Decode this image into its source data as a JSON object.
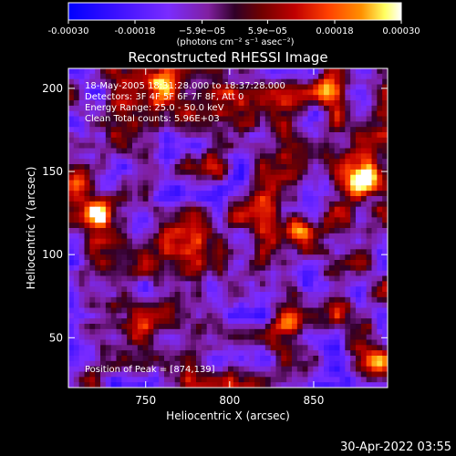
{
  "chart_data": {
    "type": "heatmap",
    "title": "Reconstructed RHESSI Image",
    "xlabel": "Heliocentric X (arcsec)",
    "ylabel": "Heliocentric Y (arcsec)",
    "xlim": [
      704,
      894
    ],
    "ylim": [
      20,
      212
    ],
    "x_ticks": [
      750,
      800,
      850
    ],
    "y_ticks": [
      50,
      100,
      150,
      200
    ],
    "colorbar": {
      "ticks": [
        "-0.00030",
        "-0.00018",
        "−5.9e−05",
        "5.9e−05",
        "0.00018",
        "0.00030"
      ],
      "tick_values": [
        -0.0003,
        -0.00018,
        -5.9e-05,
        5.9e-05,
        0.00018,
        0.0003
      ],
      "range": [
        -0.0003,
        0.0003
      ],
      "units": "(photons cm⁻² s⁻¹ asec⁻²)",
      "colors": [
        "#0000ff",
        "#7a2cff",
        "#8020a0",
        "#300028",
        "#a00000",
        "#ff3000",
        "#ff9000",
        "#ffff80",
        "#ffffff"
      ]
    },
    "annotations": [
      "18-May-2005 18:31:28.000 to 18:37:28.000",
      "Detectors: 3F 4F 5F 6F 7F 8F, Att 0",
      "Energy Range: 25.0 - 50.0 keV",
      "Clean     Total counts: 5.96E+03"
    ],
    "peak_label": "Position of Peak = [874,139]",
    "peak_position": [
      874,
      139
    ],
    "bright_sources": [
      {
        "x": 875,
        "y": 140,
        "value": 0.0003
      },
      {
        "x": 835,
        "y": 62,
        "value": 0.00027
      },
      {
        "x": 710,
        "y": 145,
        "value": 0.00024
      },
      {
        "x": 885,
        "y": 148,
        "value": 0.00022
      },
      {
        "x": 722,
        "y": 125,
        "value": 0.0002
      },
      {
        "x": 840,
        "y": 115,
        "value": 0.00018
      },
      {
        "x": 760,
        "y": 200,
        "value": 0.00018
      },
      {
        "x": 888,
        "y": 35,
        "value": 0.00017
      },
      {
        "x": 858,
        "y": 200,
        "value": 0.00016
      },
      {
        "x": 790,
        "y": 55,
        "value": 0.00014
      }
    ]
  },
  "footer": {
    "timestamp": "30-Apr-2022 03:55"
  }
}
